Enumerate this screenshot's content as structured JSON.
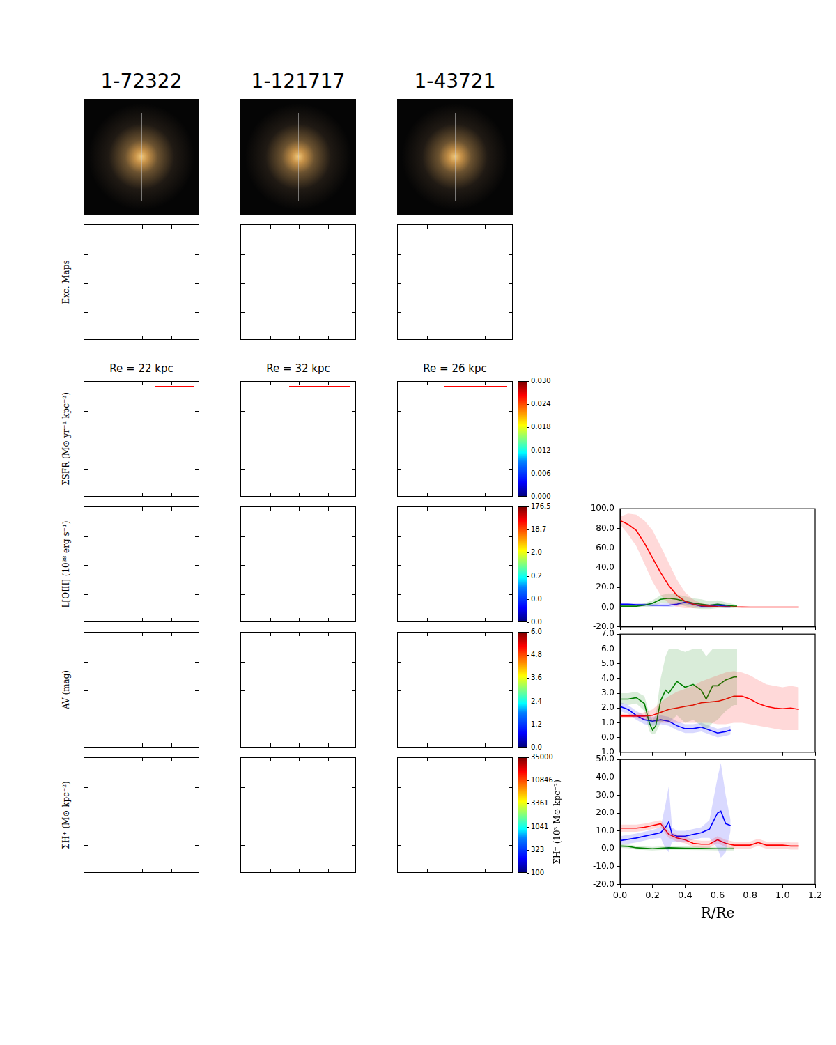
{
  "figure": {
    "columns": [
      {
        "title": "1-72322",
        "re_label": "Re = 22 kpc"
      },
      {
        "title": "1-121717",
        "re_label": "Re = 32 kpc"
      },
      {
        "title": "1-43721",
        "re_label": "Re = 26 kpc"
      }
    ],
    "row_labels": [
      "Exc. Maps",
      "ΣSFR (M⊙ yr⁻¹ kpc⁻²)",
      "L[OIII] (10³⁸ erg s⁻¹)",
      "AV (mag)",
      "ΣH⁺ (M⊙ kpc⁻²)"
    ],
    "colorbars": [
      {
        "ticks": [
          {
            "value": 0,
            "label": "0.000"
          },
          0.006,
          0.012,
          0.018,
          0.024,
          {
            "value": 0.03,
            "label": "0.030"
          }
        ]
      },
      {
        "ticks": [
          {
            "value": 0,
            "label": "0.0"
          },
          {
            "value": 0,
            "label": "0.0"
          },
          0.2,
          {
            "value": 2,
            "label": "2.0"
          },
          18.7,
          176.5
        ]
      },
      {
        "ticks": [
          {
            "value": 0,
            "label": "0.0"
          },
          1.2,
          2.4,
          3.6,
          4.8,
          {
            "value": 6,
            "label": "6.0"
          }
        ]
      },
      {
        "ticks": [
          100,
          323,
          1041,
          3361,
          10846,
          35000
        ]
      }
    ]
  },
  "chart_data": [
    {
      "type": "line",
      "grid": false,
      "tick_labels": "y",
      "xlim": [
        0,
        1.2
      ],
      "xticks": [
        {
          "value": 0,
          "label": "0.0"
        },
        0.2,
        0.4,
        0.6,
        0.8,
        {
          "value": 1,
          "label": "1.0"
        },
        1.2
      ],
      "ylim": [
        -20,
        100
      ],
      "yticks": [
        {
          "value": -20,
          "label": "-20.0"
        },
        {
          "value": 0,
          "label": "0.0"
        },
        {
          "value": 20,
          "label": "20.0"
        },
        {
          "value": 40,
          "label": "40.0"
        },
        {
          "value": 60,
          "label": "60.0"
        },
        {
          "value": 80,
          "label": "80.0"
        },
        {
          "value": 100,
          "label": "100.0"
        }
      ],
      "series": [
        {
          "color": "#ff0000",
          "x": [
            0,
            0.05,
            0.1,
            0.15,
            0.2,
            0.25,
            0.3,
            0.35,
            0.4,
            0.45,
            0.5,
            0.55,
            0.6,
            0.65,
            0.7,
            0.75,
            0.8,
            0.85,
            0.9,
            0.95,
            1.0,
            1.05,
            1.1
          ],
          "values": [
            88,
            84,
            78,
            65,
            50,
            35,
            22,
            12,
            6,
            3,
            1.5,
            1,
            0.5,
            0.3,
            0.2,
            0.1,
            0,
            0,
            0,
            0,
            0,
            0,
            0
          ],
          "upper": [
            92,
            95,
            94,
            88,
            78,
            62,
            45,
            28,
            15,
            8,
            4,
            2.5,
            1.5,
            1,
            0.5,
            0.3,
            0.2,
            0.1,
            0,
            0,
            0,
            0,
            0
          ],
          "lower": [
            84,
            74,
            62,
            44,
            26,
            12,
            4,
            0,
            -1,
            -1,
            -0.5,
            -0.3,
            -0.3,
            -0.2,
            -0.1,
            0,
            0,
            0,
            0,
            0,
            0,
            0,
            0
          ]
        },
        {
          "color": "#008000",
          "x": [
            0,
            0.05,
            0.1,
            0.15,
            0.2,
            0.25,
            0.3,
            0.35,
            0.4,
            0.45,
            0.5,
            0.55,
            0.6,
            0.65,
            0.7,
            0.72
          ],
          "values": [
            1,
            1,
            1,
            2,
            4,
            8,
            9,
            8,
            6,
            4,
            3,
            2,
            3,
            2,
            1,
            1
          ],
          "upper": [
            2,
            2,
            2,
            4,
            7,
            12,
            14,
            13,
            11,
            9,
            8,
            6,
            7,
            5,
            3,
            2
          ],
          "lower": [
            0,
            0,
            0,
            0,
            1,
            4,
            4,
            3,
            1,
            -1,
            -2,
            -2,
            -1,
            -1,
            -1,
            0
          ]
        },
        {
          "color": "#0000ff",
          "x": [
            0,
            0.05,
            0.1,
            0.15,
            0.2,
            0.25,
            0.3,
            0.35,
            0.4,
            0.45,
            0.5,
            0.55,
            0.6,
            0.65,
            0.68
          ],
          "values": [
            3,
            3,
            2.5,
            2.5,
            2,
            2,
            2,
            3,
            5,
            3,
            1,
            1,
            2,
            1,
            0.5
          ],
          "upper": [
            4,
            4,
            4,
            4,
            3.5,
            3.5,
            4,
            5,
            7,
            5,
            3,
            3,
            4,
            3,
            2
          ],
          "lower": [
            2,
            2,
            1,
            1,
            0.5,
            0.5,
            0,
            1,
            3,
            1,
            -1,
            -1,
            0,
            -1,
            -1
          ]
        }
      ]
    },
    {
      "type": "line",
      "grid": false,
      "tick_labels": "y",
      "xlim": [
        0,
        1.2
      ],
      "xticks": [
        {
          "value": 0,
          "label": "0.0"
        },
        0.2,
        0.4,
        0.6,
        0.8,
        {
          "value": 1,
          "label": "1.0"
        },
        1.2
      ],
      "ylim": [
        -1,
        7
      ],
      "yticks": [
        {
          "value": -1,
          "label": "-1.0"
        },
        {
          "value": 0,
          "label": "0.0"
        },
        {
          "value": 1,
          "label": "1.0"
        },
        {
          "value": 2,
          "label": "2.0"
        },
        {
          "value": 3,
          "label": "3.0"
        },
        {
          "value": 4,
          "label": "4.0"
        },
        {
          "value": 5,
          "label": "5.0"
        },
        {
          "value": 6,
          "label": "6.0"
        },
        {
          "value": 7,
          "label": "7.0"
        }
      ],
      "series": [
        {
          "color": "#ff0000",
          "x": [
            0,
            0.05,
            0.1,
            0.15,
            0.2,
            0.25,
            0.3,
            0.35,
            0.4,
            0.45,
            0.5,
            0.55,
            0.6,
            0.65,
            0.7,
            0.75,
            0.8,
            0.85,
            0.9,
            0.95,
            1.0,
            1.05,
            1.1
          ],
          "values": [
            1.45,
            1.45,
            1.45,
            1.45,
            1.5,
            1.7,
            1.9,
            2.0,
            2.1,
            2.2,
            2.35,
            2.4,
            2.45,
            2.6,
            2.8,
            2.8,
            2.6,
            2.3,
            2.1,
            2.0,
            1.95,
            2.0,
            1.9
          ],
          "upper": [
            1.6,
            1.6,
            1.6,
            1.7,
            1.9,
            2.4,
            2.8,
            3.1,
            3.3,
            3.5,
            3.8,
            4.0,
            4.2,
            4.4,
            4.5,
            4.4,
            4.2,
            3.9,
            3.6,
            3.5,
            3.4,
            3.5,
            3.4
          ],
          "lower": [
            1.3,
            1.3,
            1.3,
            1.2,
            1.1,
            1.0,
            1.0,
            1.0,
            1.0,
            1.0,
            1.0,
            1.0,
            0.9,
            0.9,
            1.0,
            1.0,
            0.9,
            0.8,
            0.7,
            0.6,
            0.5,
            0.5,
            0.5
          ]
        },
        {
          "color": "#008000",
          "x": [
            0,
            0.05,
            0.1,
            0.15,
            0.18,
            0.2,
            0.22,
            0.25,
            0.28,
            0.3,
            0.35,
            0.4,
            0.45,
            0.5,
            0.53,
            0.57,
            0.6,
            0.65,
            0.7,
            0.72
          ],
          "values": [
            2.6,
            2.6,
            2.7,
            2.3,
            1.0,
            0.5,
            0.8,
            2.5,
            3.2,
            3.0,
            3.8,
            3.4,
            3.6,
            3.2,
            2.6,
            3.5,
            3.5,
            3.9,
            4.1,
            4.1
          ],
          "upper": [
            3.0,
            3.0,
            3.1,
            2.8,
            1.6,
            1.2,
            1.5,
            4.0,
            5.5,
            6.0,
            6.0,
            5.8,
            6.0,
            6.0,
            5.5,
            6.0,
            6.0,
            6.0,
            6.0,
            6.0
          ],
          "lower": [
            2.3,
            2.2,
            2.3,
            1.8,
            0.4,
            0.2,
            0.3,
            1.0,
            1.2,
            1.0,
            1.5,
            1.0,
            1.2,
            0.8,
            0.5,
            1.0,
            1.2,
            1.8,
            2.2,
            2.2
          ]
        },
        {
          "color": "#0000ff",
          "x": [
            0,
            0.05,
            0.1,
            0.15,
            0.2,
            0.25,
            0.3,
            0.35,
            0.4,
            0.45,
            0.5,
            0.55,
            0.6,
            0.65,
            0.68
          ],
          "values": [
            2.1,
            1.9,
            1.5,
            1.2,
            1.1,
            1.2,
            1.1,
            0.8,
            0.6,
            0.6,
            0.7,
            0.5,
            0.3,
            0.4,
            0.5
          ],
          "upper": [
            2.4,
            2.2,
            1.8,
            1.5,
            1.4,
            1.5,
            1.4,
            1.1,
            0.9,
            0.9,
            1.0,
            0.8,
            0.6,
            0.7,
            0.8
          ],
          "lower": [
            1.8,
            1.6,
            1.2,
            0.9,
            0.8,
            0.9,
            0.8,
            0.5,
            0.3,
            0.3,
            0.4,
            0.2,
            0.0,
            0.1,
            0.2
          ]
        }
      ]
    },
    {
      "type": "line",
      "grid": false,
      "tick_labels": true,
      "xlabel": "R/Re",
      "ylabel": "ΣH⁺ (10³ M⊙ kpc⁻²)",
      "xlim": [
        0,
        1.2
      ],
      "xticks": [
        {
          "value": 0,
          "label": "0.0"
        },
        0.2,
        0.4,
        0.6,
        0.8,
        {
          "value": 1,
          "label": "1.0"
        },
        1.2
      ],
      "ylim": [
        -20,
        50
      ],
      "yticks": [
        {
          "value": -20,
          "label": "-20.0"
        },
        {
          "value": -10,
          "label": "-10.0"
        },
        {
          "value": 0,
          "label": "0.0"
        },
        {
          "value": 10,
          "label": "10.0"
        },
        {
          "value": 20,
          "label": "20.0"
        },
        {
          "value": 30,
          "label": "30.0"
        },
        {
          "value": 40,
          "label": "40.0"
        },
        {
          "value": 50,
          "label": "50.0"
        }
      ],
      "series": [
        {
          "color": "#ff0000",
          "x": [
            0,
            0.05,
            0.1,
            0.15,
            0.2,
            0.25,
            0.3,
            0.35,
            0.4,
            0.45,
            0.5,
            0.55,
            0.6,
            0.65,
            0.7,
            0.75,
            0.8,
            0.85,
            0.9,
            0.95,
            1.0,
            1.05,
            1.1
          ],
          "values": [
            11.5,
            11.5,
            11.5,
            12,
            13,
            14,
            8,
            6,
            5,
            3,
            2.5,
            2.5,
            5,
            3,
            2,
            2,
            2,
            3.5,
            2,
            2,
            2,
            1.5,
            1.5
          ],
          "upper": [
            13.5,
            13.5,
            13.5,
            14,
            15,
            16,
            10,
            8,
            7,
            5,
            4.5,
            4.5,
            7,
            5,
            4,
            4,
            4,
            5.5,
            4,
            4,
            4,
            3.5,
            3.5
          ],
          "lower": [
            9.5,
            9.5,
            9.5,
            10,
            11,
            12,
            6,
            4,
            3,
            1,
            0.5,
            0.5,
            3,
            1,
            0,
            0,
            0,
            1.5,
            0,
            0,
            0,
            -0.5,
            -0.5
          ]
        },
        {
          "color": "#008000",
          "x": [
            0,
            0.05,
            0.1,
            0.2,
            0.3,
            0.4,
            0.5,
            0.6,
            0.7
          ],
          "values": [
            1.5,
            1.3,
            0.5,
            0,
            0.5,
            0.3,
            0.2,
            0,
            0
          ],
          "upper": [
            2.5,
            2.3,
            1.5,
            1,
            1.5,
            1.3,
            1.2,
            1,
            1
          ],
          "lower": [
            0.5,
            0.3,
            -0.5,
            -1,
            -0.5,
            -0.7,
            -0.8,
            -1,
            -1
          ]
        },
        {
          "color": "#0000ff",
          "x": [
            0,
            0.1,
            0.2,
            0.25,
            0.28,
            0.3,
            0.32,
            0.35,
            0.4,
            0.45,
            0.5,
            0.55,
            0.6,
            0.62,
            0.65,
            0.68
          ],
          "values": [
            4.5,
            6,
            8,
            9,
            12,
            15,
            8,
            7,
            7,
            8,
            9,
            11,
            20,
            21,
            14,
            13
          ],
          "upper": [
            7,
            8.5,
            10.5,
            12,
            25,
            35,
            12,
            10,
            10,
            11,
            12,
            16,
            40,
            48,
            30,
            16
          ],
          "lower": [
            2,
            3.5,
            5.5,
            6,
            0,
            -2,
            4,
            4,
            4,
            5,
            6,
            6,
            0,
            -5,
            -2,
            10
          ]
        }
      ]
    }
  ]
}
